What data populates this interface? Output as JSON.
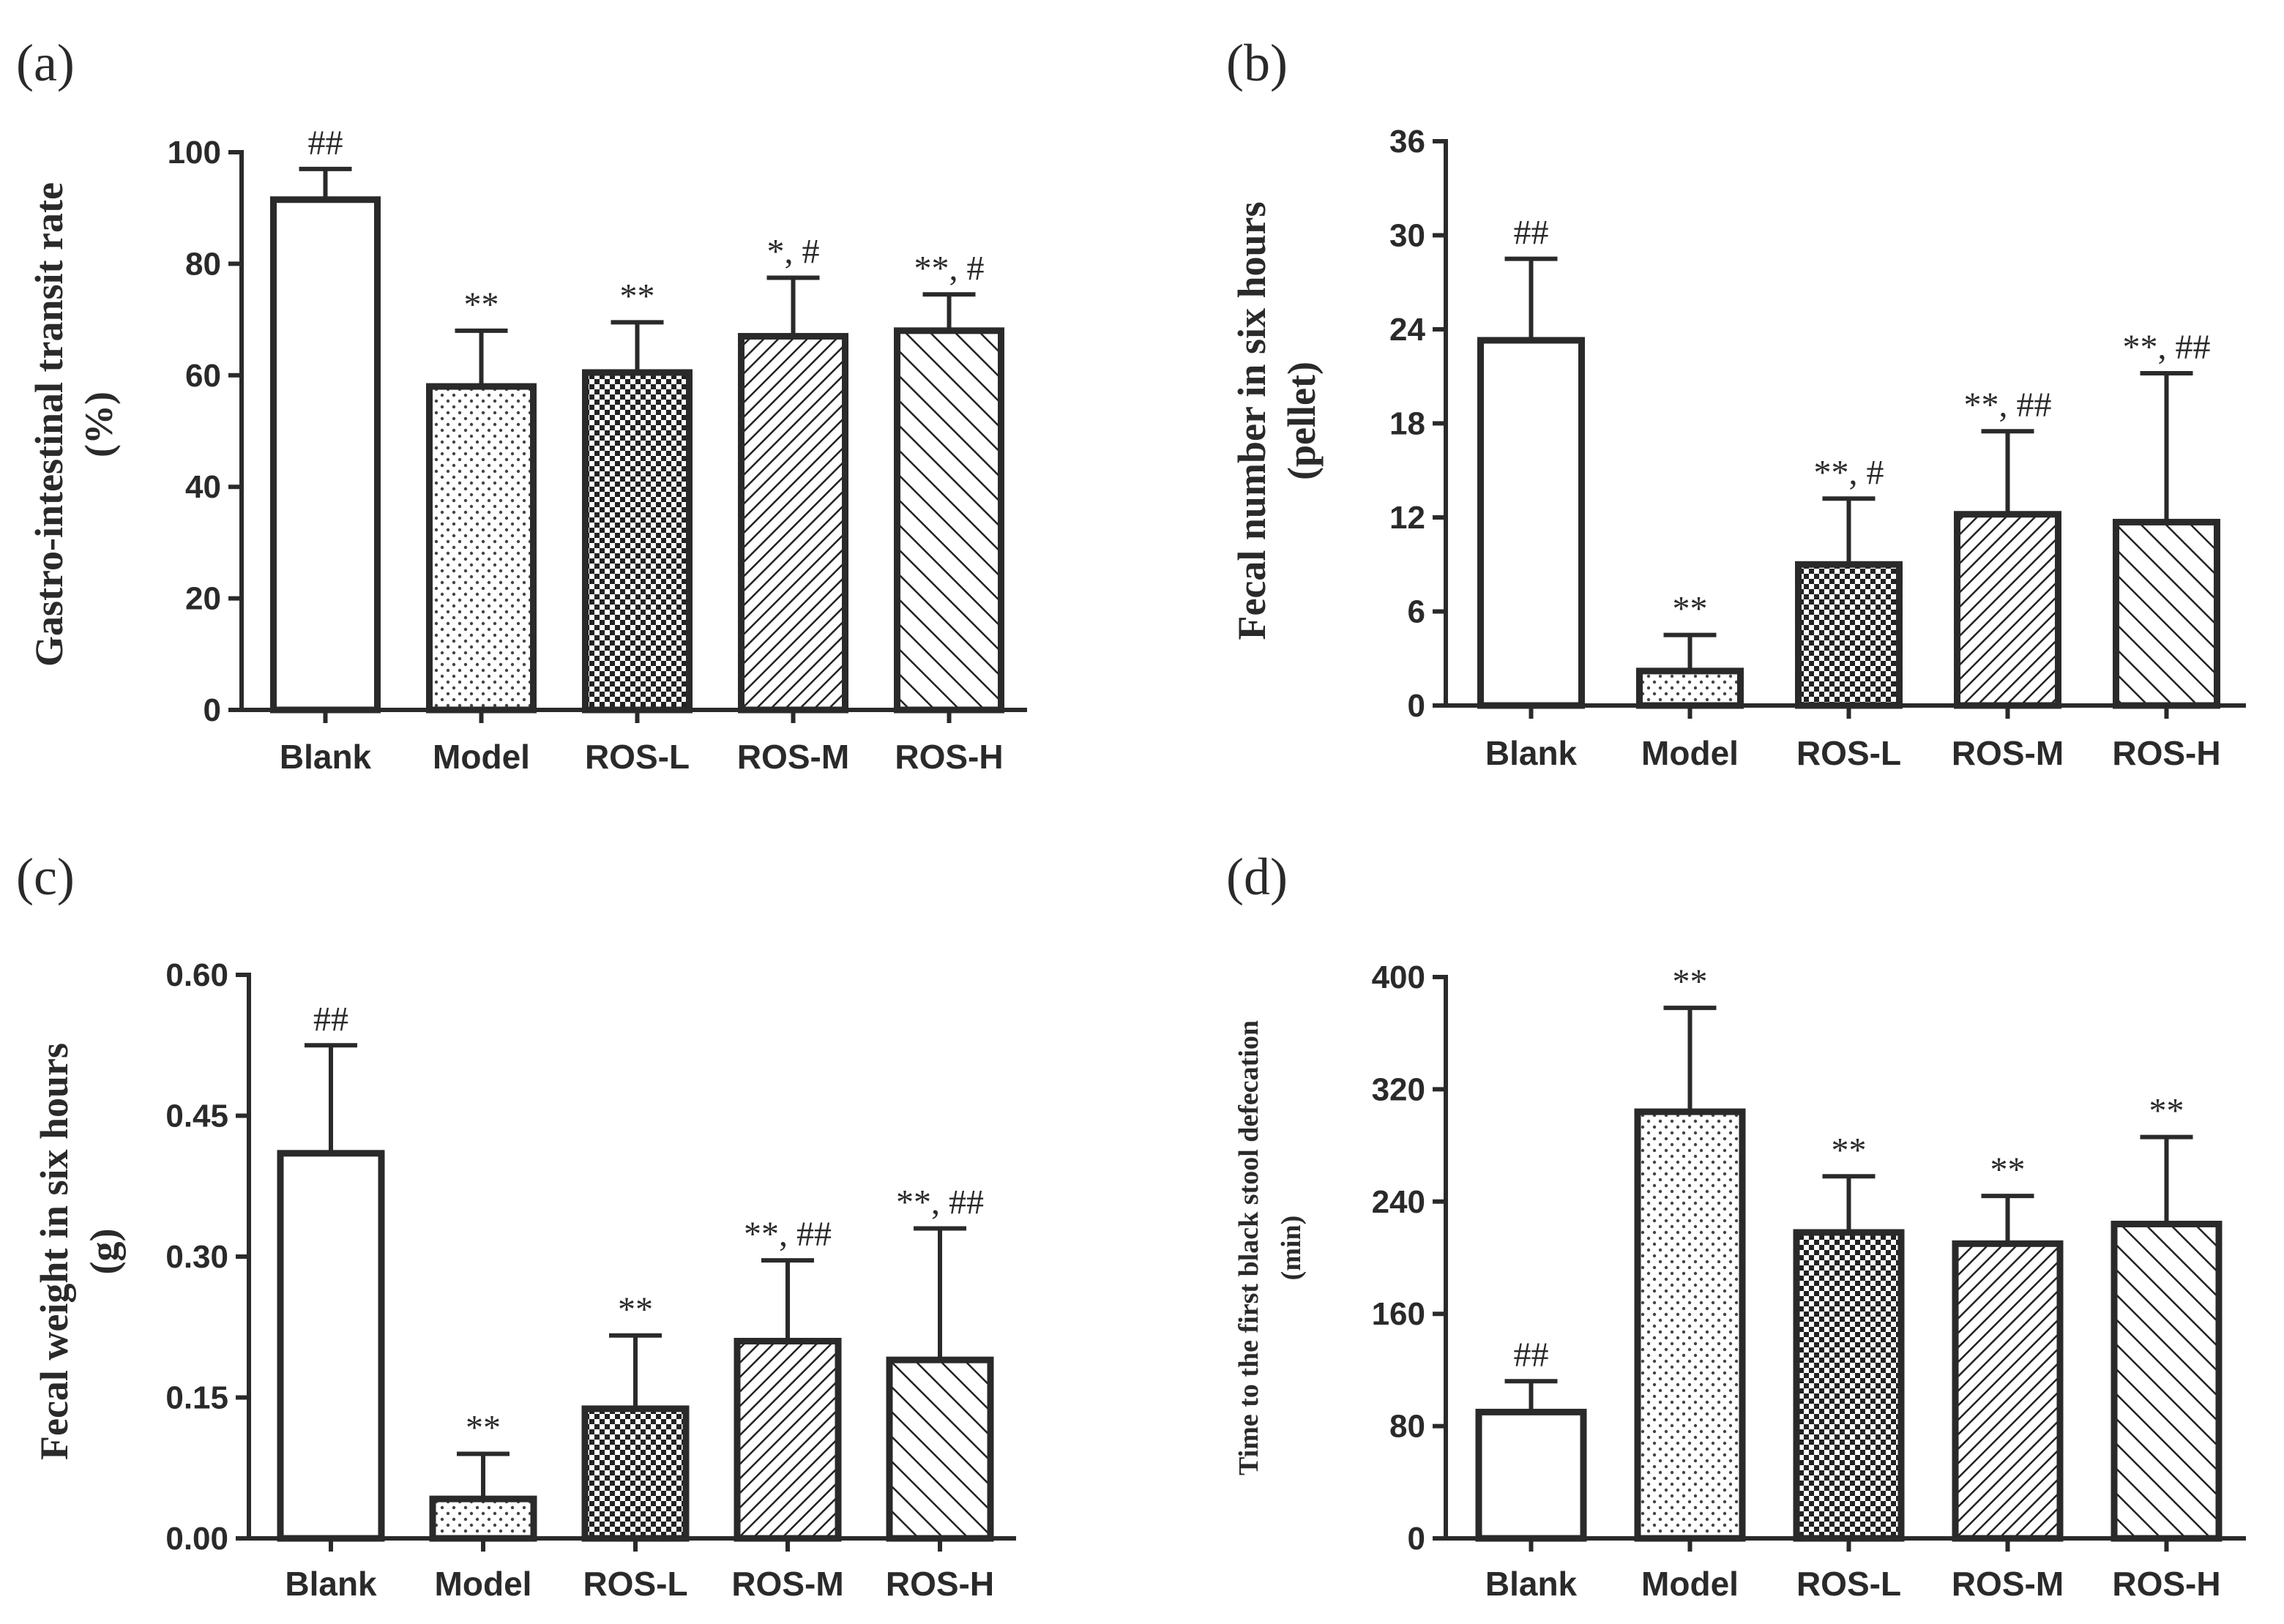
{
  "chart_data": [
    {
      "type": "bar",
      "panel_label": "(a)",
      "categories": [
        "Blank",
        "Model",
        "ROS-L",
        "ROS-M",
        "ROS-H"
      ],
      "values": [
        91.5,
        58,
        60.5,
        67,
        68
      ],
      "error": [
        5.5,
        10,
        9,
        10.5,
        6.5
      ],
      "significance": [
        "##",
        "**",
        "**",
        "*, #",
        "**, #"
      ],
      "patterns": [
        "none",
        "dots",
        "checker",
        "hatch-dense",
        "hatch-wide"
      ],
      "ylabel_line1": "Gastro-intestinal transit rate",
      "ylabel_line2": "(%)",
      "ylim": [
        0,
        100
      ],
      "yticks": [
        "0",
        "20",
        "40",
        "60",
        "80",
        "100"
      ]
    },
    {
      "type": "bar",
      "panel_label": "(b)",
      "categories": [
        "Blank",
        "Model",
        "ROS-L",
        "ROS-M",
        "ROS-H"
      ],
      "values": [
        23.3,
        2.2,
        9,
        12.2,
        11.7
      ],
      "error": [
        5.2,
        2.3,
        4.2,
        5.3,
        9.5
      ],
      "significance": [
        "##",
        "**",
        "**, #",
        "**, ##",
        "**, ##"
      ],
      "patterns": [
        "none",
        "dots",
        "checker",
        "hatch-dense",
        "hatch-wide"
      ],
      "ylabel_line1": "Fecal  number in six hours",
      "ylabel_line2": "(pellet)",
      "ylim": [
        0,
        36
      ],
      "yticks": [
        "0",
        "6",
        "12",
        "18",
        "24",
        "30",
        "36"
      ]
    },
    {
      "type": "bar",
      "panel_label": "(c)",
      "categories": [
        "Blank",
        "Model",
        "ROS-L",
        "ROS-M",
        "ROS-H"
      ],
      "values": [
        0.41,
        0.042,
        0.138,
        0.21,
        0.19
      ],
      "error": [
        0.115,
        0.048,
        0.078,
        0.086,
        0.14
      ],
      "significance": [
        "##",
        "**",
        "**",
        "**, ##",
        "**, ##"
      ],
      "patterns": [
        "none",
        "dots",
        "checker",
        "hatch-dense",
        "hatch-wide"
      ],
      "ylabel_line1": "Fecal weight in six hours",
      "ylabel_line2": "(g)",
      "ylim": [
        0,
        0.6
      ],
      "yticks": [
        "0.00",
        "0.15",
        "0.30",
        "0.45",
        "0.60"
      ]
    },
    {
      "type": "bar",
      "panel_label": "(d)",
      "categories": [
        "Blank",
        "Model",
        "ROS-L",
        "ROS-M",
        "ROS-H"
      ],
      "values": [
        90,
        304,
        218,
        210,
        224
      ],
      "error": [
        22,
        74,
        40,
        34,
        62
      ],
      "significance": [
        "##",
        "**",
        "**",
        "**",
        "**"
      ],
      "patterns": [
        "none",
        "dots",
        "checker",
        "hatch-dense",
        "hatch-wide"
      ],
      "ylabel_line1": "Time to the first black stool defecation",
      "ylabel_line2": "(min)",
      "ylim": [
        0,
        400
      ],
      "yticks": [
        "0",
        "80",
        "160",
        "240",
        "320",
        "400"
      ]
    }
  ]
}
